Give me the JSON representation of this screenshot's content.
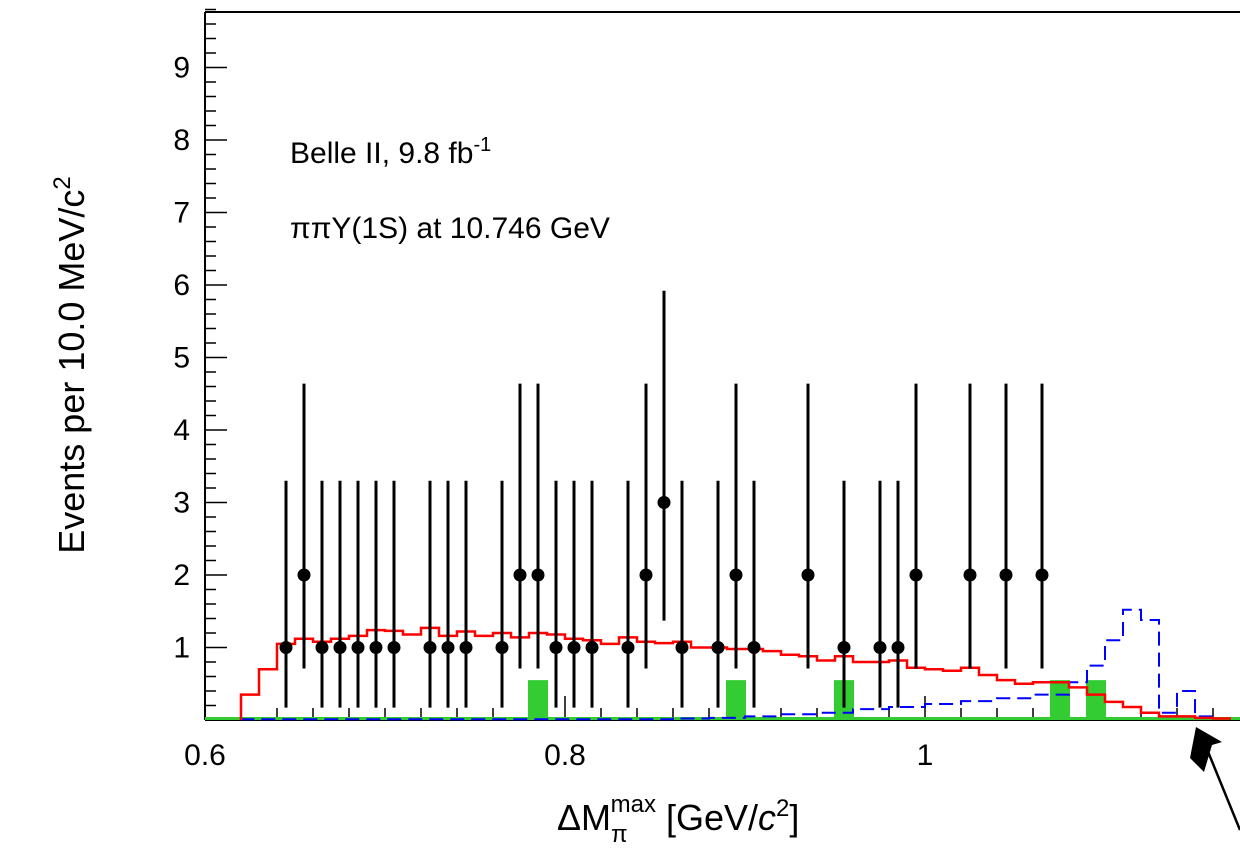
{
  "chart_data": {
    "type": "histogram",
    "annotations": [
      "Belle II, 9.8 fb",
      "-1",
      "ππΥ(1S) at 10.746 GeV"
    ],
    "xlabel": {
      "main": "ΔM",
      "sub": "π",
      "sup": "max",
      "unit_open": " [GeV/",
      "unit_c": "c",
      "unit_pow": "2",
      "unit_close": "]"
    },
    "ylabel": {
      "main": "Events per 10.0 MeV/c",
      "pow": "2"
    },
    "x_ticks": [
      "0.6",
      "0.8",
      "1"
    ],
    "y_ticks": [
      "1",
      "2",
      "3",
      "4",
      "5",
      "6",
      "7",
      "8",
      "9"
    ],
    "xlim": [
      0.6,
      1.17
    ],
    "ylim": [
      0,
      9.8
    ],
    "colors": {
      "data": "#000000",
      "total_fit": "#ff0000",
      "signal": "#0000ff",
      "background": "#33cc33"
    },
    "data_points": {
      "x": [
        0.645,
        0.655,
        0.665,
        0.675,
        0.685,
        0.695,
        0.705,
        0.725,
        0.735,
        0.745,
        0.765,
        0.775,
        0.785,
        0.795,
        0.805,
        0.815,
        0.835,
        0.845,
        0.855,
        0.865,
        0.885,
        0.895,
        0.905,
        0.935,
        0.955,
        0.975,
        0.985,
        0.995,
        1.025,
        1.045,
        1.065
      ],
      "y": [
        1,
        2,
        1,
        1,
        1,
        1,
        1,
        1,
        1,
        1,
        1,
        2,
        2,
        1,
        1,
        1,
        1,
        2,
        3,
        1,
        1,
        2,
        1,
        2,
        1,
        1,
        1,
        2,
        2,
        2,
        2
      ],
      "err_low": [
        0.83,
        1.29,
        0.83,
        0.83,
        0.83,
        0.83,
        0.83,
        0.83,
        0.83,
        0.83,
        0.83,
        1.29,
        1.29,
        0.83,
        0.83,
        0.83,
        0.83,
        1.29,
        1.63,
        0.83,
        0.83,
        1.29,
        0.83,
        1.29,
        0.83,
        0.83,
        0.83,
        1.29,
        1.29,
        1.29,
        1.29
      ],
      "err_high": [
        2.3,
        2.64,
        2.3,
        2.3,
        2.3,
        2.3,
        2.3,
        2.3,
        2.3,
        2.3,
        2.3,
        2.64,
        2.64,
        2.3,
        2.3,
        2.3,
        2.3,
        2.64,
        2.92,
        2.3,
        2.3,
        2.64,
        2.3,
        2.64,
        2.3,
        2.3,
        2.3,
        2.64,
        2.64,
        2.64,
        2.64
      ]
    },
    "total_fit": {
      "bin_edges": [
        0.62,
        0.63,
        0.64,
        0.65,
        0.66,
        0.67,
        0.68,
        0.69,
        0.7,
        0.71,
        0.72,
        0.73,
        0.74,
        0.75,
        0.76,
        0.77,
        0.78,
        0.79,
        0.8,
        0.81,
        0.82,
        0.83,
        0.84,
        0.85,
        0.86,
        0.87,
        0.88,
        0.89,
        0.9,
        0.91,
        0.92,
        0.93,
        0.94,
        0.95,
        0.96,
        0.97,
        0.98,
        0.99,
        1.0,
        1.01,
        1.02,
        1.03,
        1.04,
        1.05,
        1.06,
        1.07,
        1.08,
        1.09,
        1.1,
        1.11,
        1.12,
        1.13,
        1.14,
        1.15,
        1.16,
        1.17
      ],
      "values": [
        0.35,
        0.7,
        1.05,
        1.12,
        1.08,
        1.12,
        1.16,
        1.24,
        1.23,
        1.18,
        1.27,
        1.16,
        1.22,
        1.16,
        1.2,
        1.14,
        1.2,
        1.18,
        1.12,
        1.1,
        1.05,
        1.14,
        1.08,
        1.06,
        1.08,
        1.0,
        1.0,
        0.98,
        0.98,
        0.95,
        0.9,
        0.88,
        0.82,
        0.88,
        0.8,
        0.8,
        0.82,
        0.72,
        0.7,
        0.68,
        0.72,
        0.62,
        0.55,
        0.5,
        0.52,
        0.52,
        0.45,
        0.35,
        0.25,
        0.18,
        0.1,
        0.05,
        0.05,
        0.03,
        0.02
      ]
    },
    "signal": {
      "bin_edges": [
        0.62,
        0.64,
        0.66,
        0.68,
        0.7,
        0.72,
        0.74,
        0.76,
        0.78,
        0.8,
        0.82,
        0.84,
        0.86,
        0.88,
        0.9,
        0.92,
        0.94,
        0.96,
        0.98,
        1.0,
        1.02,
        1.04,
        1.06,
        1.08,
        1.09,
        1.1,
        1.11,
        1.12,
        1.13,
        1.14,
        1.15,
        1.16,
        1.17
      ],
      "values": [
        0.01,
        0.01,
        0.01,
        0.01,
        0.01,
        0.01,
        0.01,
        0.01,
        0.01,
        0.01,
        0.01,
        0.01,
        0.02,
        0.03,
        0.05,
        0.08,
        0.1,
        0.15,
        0.18,
        0.22,
        0.26,
        0.3,
        0.35,
        0.52,
        0.75,
        1.1,
        1.52,
        1.38,
        0.1,
        0.4,
        0.05,
        0.02
      ]
    },
    "background_bins": {
      "x": [
        0.785,
        0.895,
        0.955,
        1.075,
        1.095
      ],
      "values": [
        0.55,
        0.55,
        0.55,
        0.55,
        0.55
      ]
    }
  }
}
